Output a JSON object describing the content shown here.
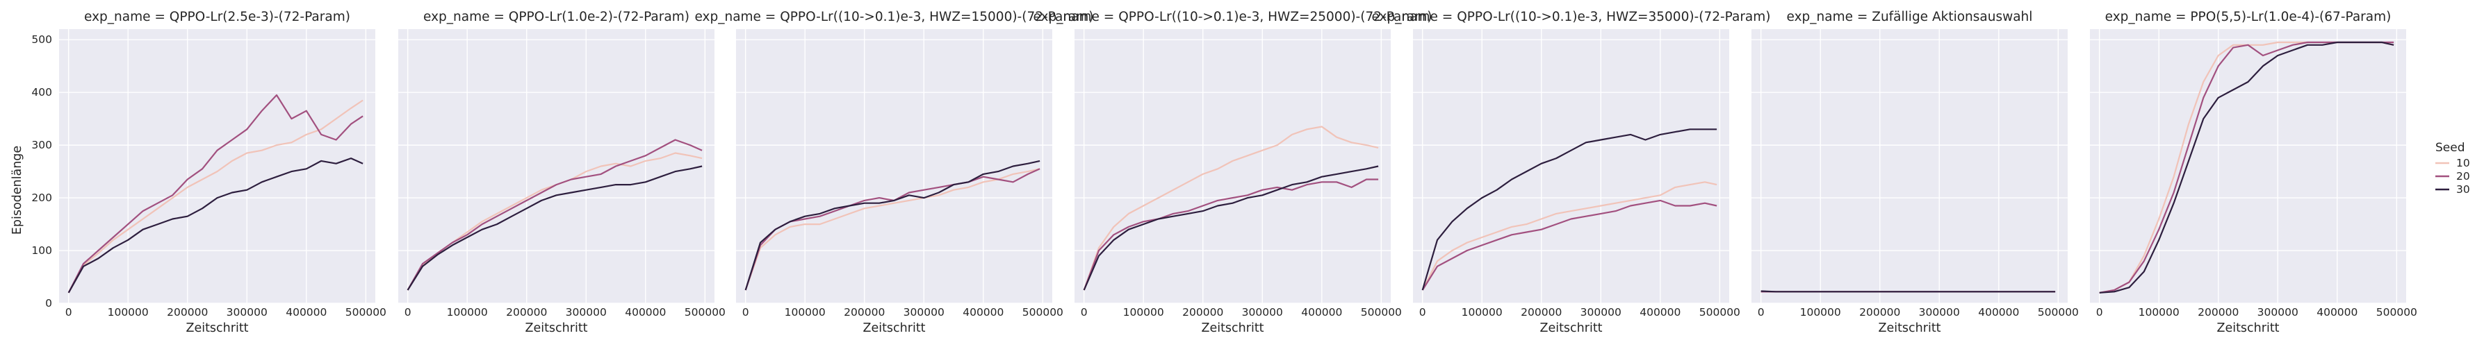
{
  "chart_data": {
    "type": "line",
    "ylabel": "Episodenlänge",
    "xlabel": "Zeitschritt",
    "xlim": [
      0,
      500000
    ],
    "ylim": [
      0,
      520
    ],
    "x_ticks": [
      0,
      100000,
      200000,
      300000,
      400000,
      500000
    ],
    "x_tick_labels": [
      "0",
      "100000",
      "200000",
      "300000",
      "400000",
      "500000"
    ],
    "y_ticks": [
      0,
      100,
      200,
      300,
      400,
      500
    ],
    "y_tick_labels": [
      "0",
      "100",
      "200",
      "300",
      "400",
      "500"
    ],
    "grid": true,
    "background": "#eaeaf2",
    "legend": {
      "title": "Seed",
      "placement": "right",
      "entries": [
        {
          "label": "10",
          "color": "#f1c3b8"
        },
        {
          "label": "20",
          "color": "#a2507f"
        },
        {
          "label": "30",
          "color": "#2d1e3e"
        }
      ]
    },
    "x": [
      0,
      25000,
      50000,
      75000,
      100000,
      125000,
      150000,
      175000,
      200000,
      225000,
      250000,
      275000,
      300000,
      325000,
      350000,
      375000,
      400000,
      425000,
      450000,
      475000,
      495000
    ],
    "panels": [
      {
        "title": "exp_name = QPPO-Lr(2.5e-3)-(72-Param)",
        "series": [
          {
            "seed": "10",
            "values": [
              20,
              72,
              95,
              120,
              140,
              160,
              180,
              200,
              220,
              235,
              250,
              270,
              285,
              290,
              300,
              305,
              320,
              330,
              350,
              370,
              385
            ]
          },
          {
            "seed": "20",
            "values": [
              20,
              75,
              100,
              125,
              150,
              175,
              190,
              205,
              235,
              255,
              290,
              310,
              330,
              365,
              395,
              350,
              365,
              320,
              310,
              340,
              355
            ]
          },
          {
            "seed": "30",
            "values": [
              20,
              70,
              85,
              105,
              120,
              140,
              150,
              160,
              165,
              180,
              200,
              210,
              215,
              230,
              240,
              250,
              255,
              270,
              265,
              275,
              265
            ]
          }
        ]
      },
      {
        "title": "exp_name = QPPO-Lr(1.0e-2)-(72-Param)",
        "series": [
          {
            "seed": "10",
            "values": [
              25,
              72,
              95,
              115,
              135,
              155,
              170,
              185,
              200,
              215,
              225,
              235,
              250,
              260,
              265,
              260,
              270,
              275,
              285,
              280,
              275
            ]
          },
          {
            "seed": "20",
            "values": [
              25,
              75,
              95,
              115,
              130,
              150,
              165,
              180,
              195,
              210,
              225,
              235,
              240,
              245,
              260,
              270,
              280,
              295,
              310,
              300,
              290
            ]
          },
          {
            "seed": "30",
            "values": [
              25,
              70,
              92,
              110,
              125,
              140,
              150,
              165,
              180,
              195,
              205,
              210,
              215,
              220,
              225,
              225,
              230,
              240,
              250,
              255,
              260
            ]
          }
        ]
      },
      {
        "title": "exp_name = QPPO-Lr((10->0.1)e-3, HWZ=15000)-(72-Param)",
        "series": [
          {
            "seed": "10",
            "values": [
              25,
              105,
              130,
              145,
              150,
              150,
              160,
              170,
              180,
              185,
              190,
              195,
              200,
              205,
              215,
              220,
              230,
              235,
              245,
              250,
              255
            ]
          },
          {
            "seed": "20",
            "values": [
              25,
              110,
              140,
              155,
              160,
              165,
              175,
              185,
              195,
              200,
              195,
              210,
              215,
              220,
              225,
              230,
              240,
              235,
              230,
              245,
              255
            ]
          },
          {
            "seed": "30",
            "values": [
              25,
              115,
              140,
              155,
              165,
              170,
              180,
              185,
              190,
              190,
              195,
              205,
              200,
              210,
              225,
              230,
              245,
              250,
              260,
              265,
              270
            ]
          }
        ]
      },
      {
        "title": "exp_name = QPPO-Lr((10->0.1)e-3, HWZ=25000)-(72-Param)",
        "series": [
          {
            "seed": "10",
            "values": [
              25,
              105,
              145,
              170,
              185,
              200,
              215,
              230,
              245,
              255,
              270,
              280,
              290,
              300,
              320,
              330,
              335,
              315,
              305,
              300,
              295
            ]
          },
          {
            "seed": "20",
            "values": [
              25,
              100,
              130,
              145,
              155,
              160,
              170,
              175,
              185,
              195,
              200,
              205,
              215,
              220,
              215,
              225,
              230,
              230,
              220,
              235,
              235
            ]
          },
          {
            "seed": "30",
            "values": [
              25,
              90,
              120,
              140,
              150,
              160,
              165,
              170,
              175,
              185,
              190,
              200,
              205,
              215,
              225,
              230,
              240,
              245,
              250,
              255,
              260
            ]
          }
        ]
      },
      {
        "title": "exp_name = QPPO-Lr((10->0.1)e-3, HWZ=35000)-(72-Param)",
        "series": [
          {
            "seed": "10",
            "values": [
              25,
              80,
              100,
              115,
              125,
              135,
              145,
              150,
              160,
              170,
              175,
              180,
              185,
              190,
              195,
              200,
              205,
              220,
              225,
              230,
              225
            ]
          },
          {
            "seed": "20",
            "values": [
              25,
              70,
              85,
              100,
              110,
              120,
              130,
              135,
              140,
              150,
              160,
              165,
              170,
              175,
              185,
              190,
              195,
              185,
              185,
              190,
              185
            ]
          },
          {
            "seed": "30",
            "values": [
              25,
              120,
              155,
              180,
              200,
              215,
              235,
              250,
              265,
              275,
              290,
              305,
              310,
              315,
              320,
              310,
              320,
              325,
              330,
              330,
              330
            ]
          }
        ]
      },
      {
        "title": "exp_name = Zufällige Aktionsauswahl",
        "series": [
          {
            "seed": "10",
            "values": [
              22,
              22,
              22,
              22,
              22,
              22,
              22,
              22,
              22,
              22,
              22,
              22,
              22,
              22,
              22,
              22,
              22,
              22,
              22,
              22,
              22
            ]
          },
          {
            "seed": "20",
            "values": [
              22,
              22,
              22,
              22,
              22,
              22,
              22,
              22,
              22,
              22,
              22,
              22,
              22,
              22,
              22,
              22,
              22,
              22,
              22,
              22,
              22
            ]
          },
          {
            "seed": "30",
            "values": [
              23,
              22,
              22,
              22,
              22,
              22,
              22,
              22,
              22,
              22,
              22,
              22,
              22,
              22,
              22,
              22,
              22,
              22,
              22,
              22,
              22
            ]
          }
        ]
      },
      {
        "title": "exp_name = PPO(5,5)-Lr(1.0e-4)-(67-Param)",
        "series": [
          {
            "seed": "10",
            "values": [
              20,
              25,
              40,
              90,
              160,
              240,
              340,
              420,
              470,
              490,
              490,
              490,
              495,
              495,
              495,
              495,
              495,
              495,
              495,
              495,
              490
            ]
          },
          {
            "seed": "20",
            "values": [
              20,
              25,
              40,
              80,
              140,
              210,
              300,
              390,
              450,
              485,
              490,
              470,
              480,
              490,
              495,
              495,
              495,
              495,
              495,
              495,
              495
            ]
          },
          {
            "seed": "30",
            "values": [
              20,
              22,
              30,
              60,
              120,
              190,
              270,
              350,
              390,
              405,
              420,
              450,
              470,
              480,
              490,
              490,
              495,
              495,
              495,
              495,
              490
            ]
          }
        ]
      }
    ]
  }
}
